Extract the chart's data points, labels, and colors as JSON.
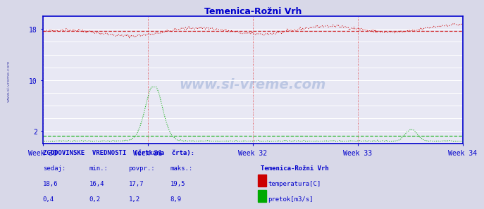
{
  "title": "Temenica-Rožni Vrh",
  "title_color": "#0000cc",
  "bg_color": "#d8d8e8",
  "plot_bg_color": "#e8e8f4",
  "grid_color": "#ffffff",
  "axis_color": "#0000cc",
  "watermark": "www.si-vreme.com",
  "weeks": [
    "Week 30",
    "Week 31",
    "Week 32",
    "Week 33",
    "Week 34"
  ],
  "n_points": 360,
  "temp_color": "#cc0000",
  "flow_color": "#00aa00",
  "temp_avg": 17.7,
  "temp_min": 16.4,
  "temp_max": 19.5,
  "temp_current": 18.6,
  "flow_avg": 1.2,
  "flow_min": 0.2,
  "flow_max": 8.9,
  "flow_current": 0.4,
  "legend_title": "Temenica-Rožni Vrh",
  "legend_temp": "temperatura[C]",
  "legend_flow": "pretok[m3/s]",
  "table_header": "ZGODOVINSKE  VREDNOSTI  (črtkana  črta):",
  "table_cols": [
    "sedaj:",
    "min.:",
    "povpr.:",
    "maks.:"
  ],
  "text_color": "#0000cc",
  "ylim": [
    0,
    20
  ],
  "ytick_positions": [
    2,
    10,
    18
  ],
  "ytick_labels": [
    "2",
    "10",
    "18"
  ]
}
